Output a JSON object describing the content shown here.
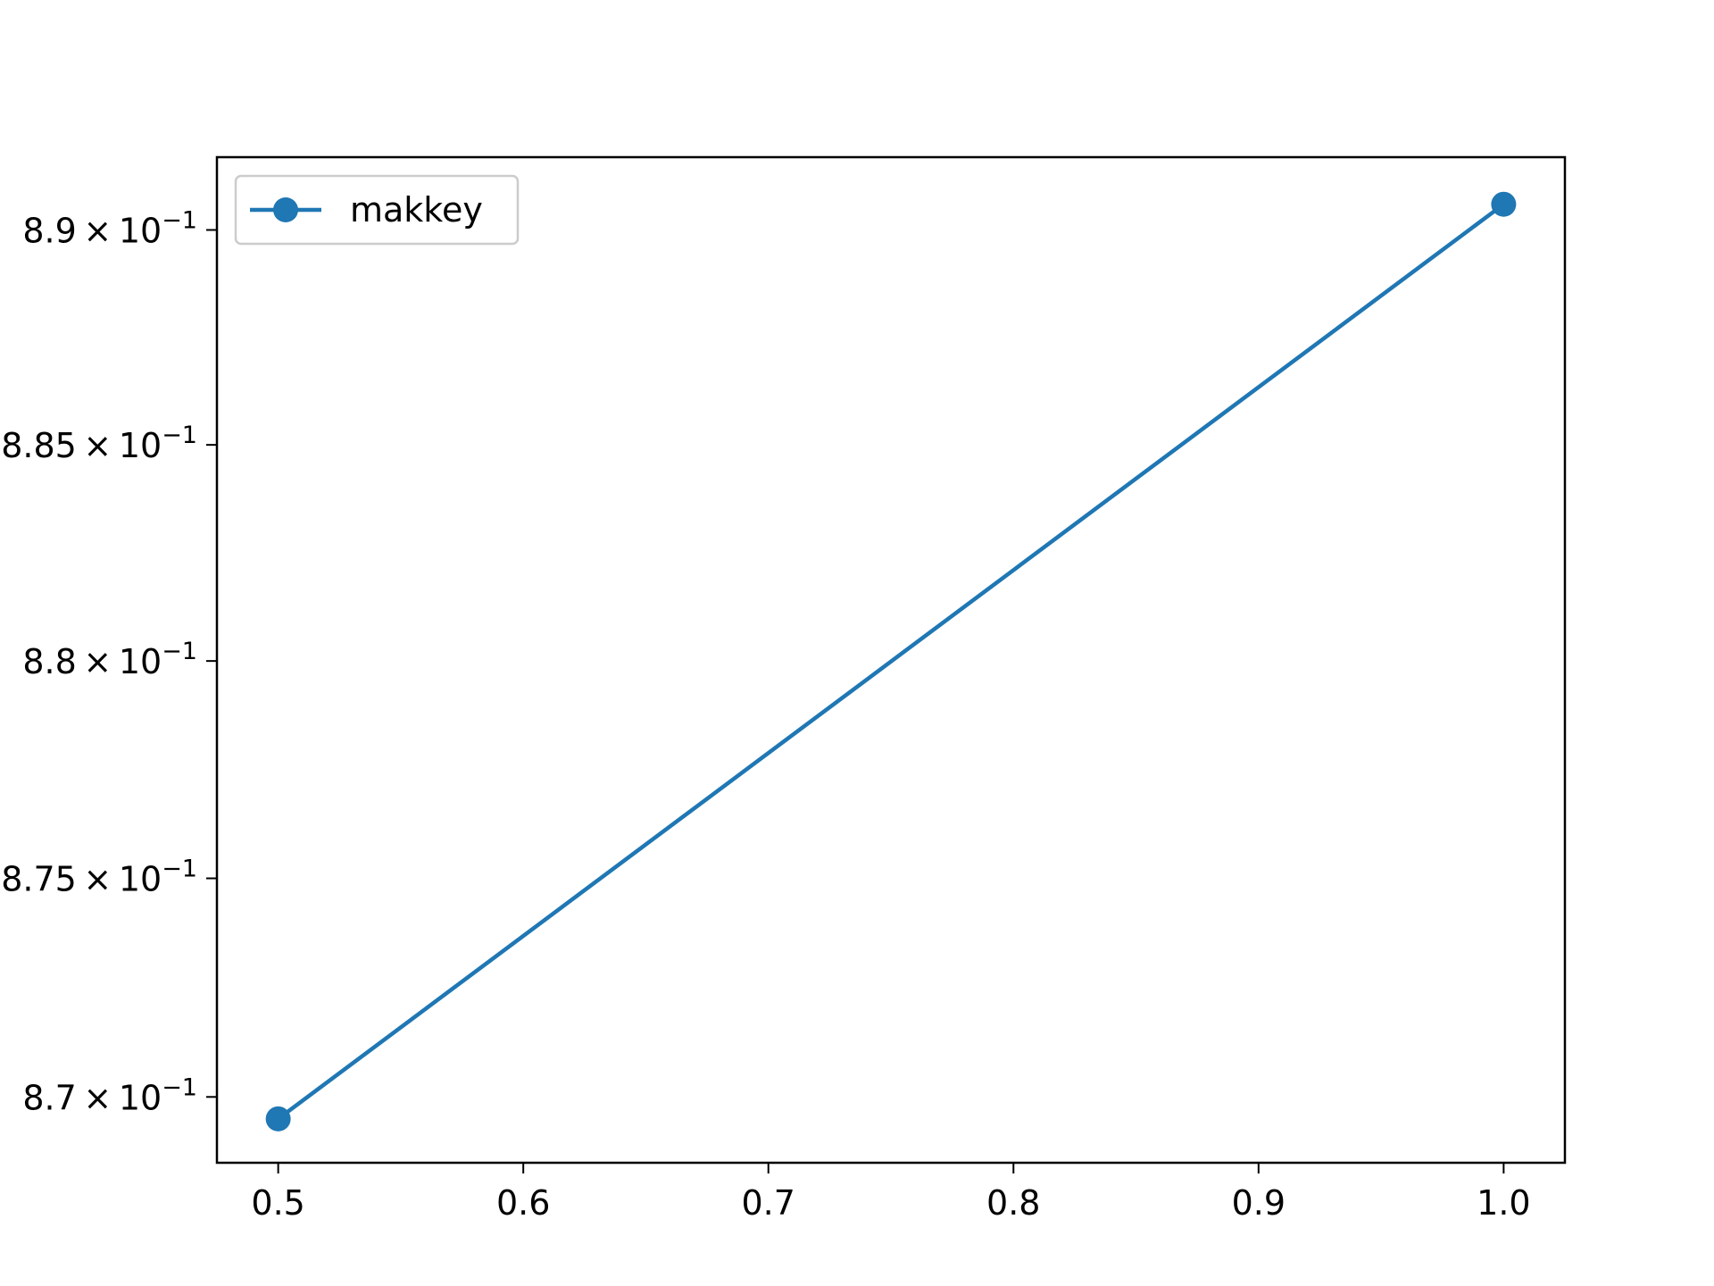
{
  "chart_data": {
    "type": "line",
    "title": "",
    "xlabel": "",
    "ylabel": "",
    "y_scale": "log",
    "xlim": [
      0.475,
      1.025
    ],
    "ylim": [
      0.8685,
      0.8917
    ],
    "grid": false,
    "legend_position": "upper-left",
    "x_ticks": [
      {
        "value": 0.5,
        "label": "0.5"
      },
      {
        "value": 0.6,
        "label": "0.6"
      },
      {
        "value": 0.7,
        "label": "0.7"
      },
      {
        "value": 0.8,
        "label": "0.8"
      },
      {
        "value": 0.9,
        "label": "0.9"
      },
      {
        "value": 1.0,
        "label": "1.0"
      }
    ],
    "y_ticks": [
      {
        "value": 0.87,
        "mantissa": "8.7",
        "base": "10",
        "exponent": "−1"
      },
      {
        "value": 0.875,
        "mantissa": "8.75",
        "base": "10",
        "exponent": "−1"
      },
      {
        "value": 0.88,
        "mantissa": "8.8",
        "base": "10",
        "exponent": "−1"
      },
      {
        "value": 0.885,
        "mantissa": "8.85",
        "base": "10",
        "exponent": "−1"
      },
      {
        "value": 0.89,
        "mantissa": "8.9",
        "base": "10",
        "exponent": "−1"
      }
    ],
    "series": [
      {
        "name": "makkey",
        "color": "#1f77b4",
        "marker": "circle",
        "x": [
          0.5,
          1.0
        ],
        "y": [
          0.8695,
          0.8906
        ]
      }
    ]
  }
}
